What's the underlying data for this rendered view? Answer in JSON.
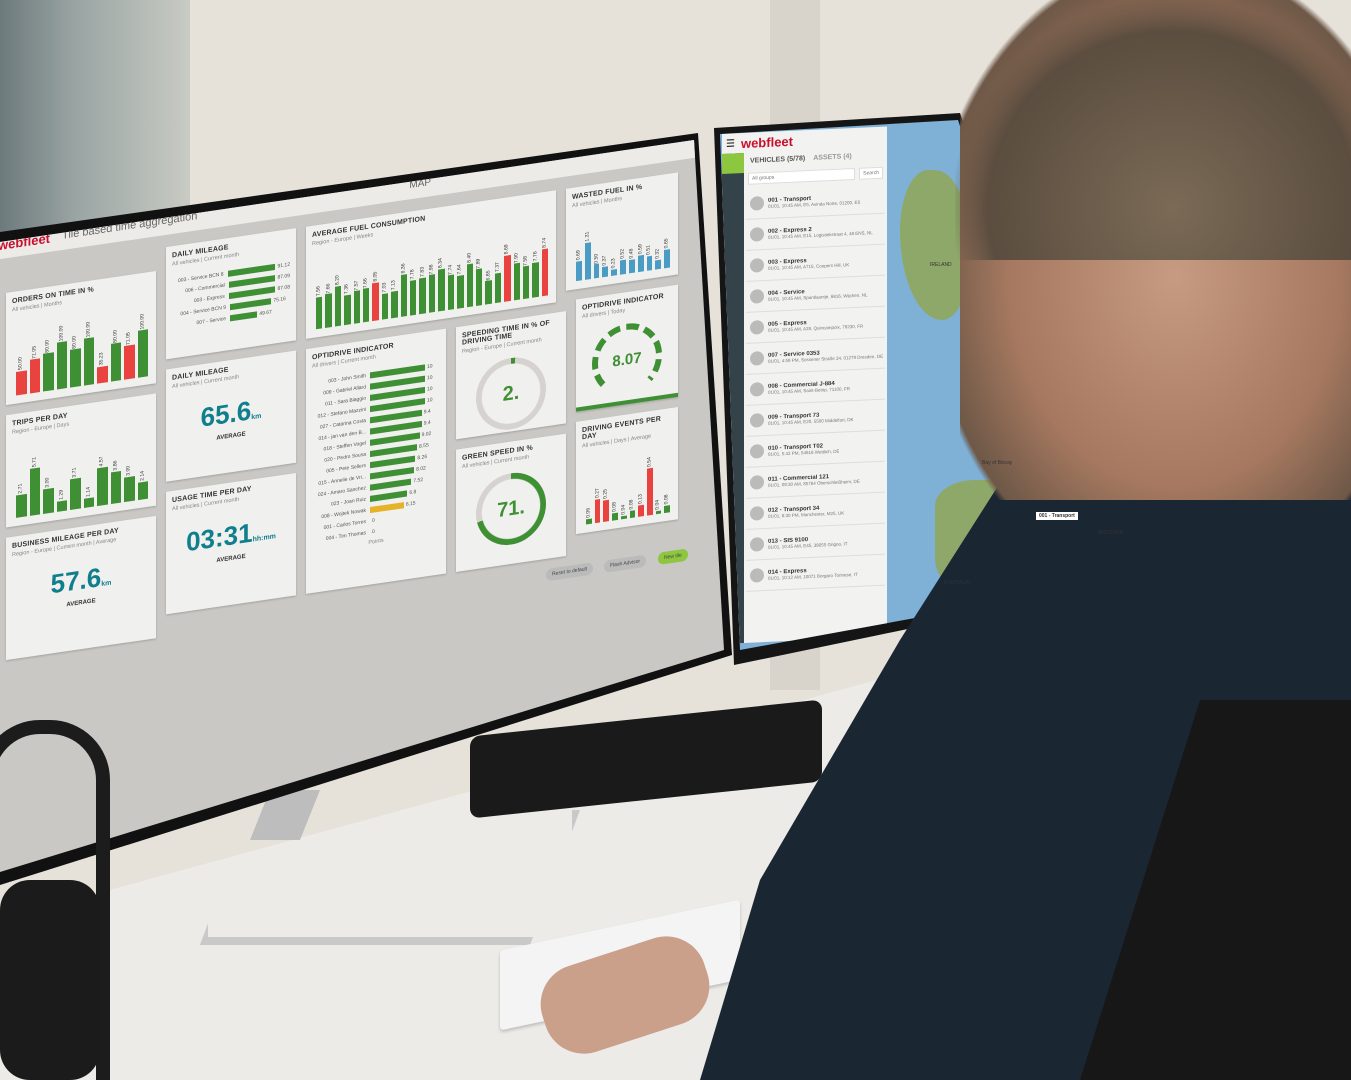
{
  "left_app": {
    "logo": "webfleet",
    "aggregation": "Tile based time aggregation",
    "window_title": "MAP",
    "orders": {
      "title": "ORDERS ON TIME IN %",
      "sub": "All vehicles | Months",
      "values": [
        50.0,
        71.05,
        80.0,
        100.0,
        80.0,
        100.0,
        35.23,
        80.0,
        71.05,
        100.0
      ],
      "red": [
        0,
        1,
        6,
        8
      ]
    },
    "daily_mileage_list": {
      "title": "DAILY MILEAGE",
      "sub": "All vehicles | Current month",
      "rows": [
        {
          "label": "003 - Service BCN 8",
          "value": 91.12
        },
        {
          "label": "006 - Commercial",
          "value": 87.09
        },
        {
          "label": "003 - Express",
          "value": 87.08
        },
        {
          "label": "004 - Service BCN 9",
          "value": 75.16
        },
        {
          "label": "007 - Service",
          "value": 49.67
        }
      ],
      "unit": "km"
    },
    "fuel": {
      "title": "AVERAGE FUEL CONSUMPTION",
      "sub": "Region - Europe | Weeks",
      "values": [
        7.56,
        7.66,
        8.2,
        7.36,
        7.57,
        7.66,
        8.05,
        7.03,
        7.13,
        8.36,
        7.78,
        7.83,
        7.98,
        8.34,
        7.74,
        7.64,
        8.4,
        7.89,
        6.85,
        7.37,
        8.69,
        7.9,
        7.58,
        7.76,
        8.74
      ],
      "red": [
        6,
        20,
        24
      ]
    },
    "wasted": {
      "title": "WASTED FUEL IN %",
      "sub": "All vehicles | Months",
      "values": [
        0.69,
        1.31,
        0.5,
        0.37,
        0.23,
        0.52,
        0.48,
        0.59,
        0.51,
        0.32,
        0.65
      ]
    },
    "trips": {
      "title": "TRIPS PER DAY",
      "sub": "Region - Europe | Days",
      "values": [
        2.71,
        5.71,
        3.0,
        1.29,
        3.71,
        1.14,
        4.57,
        3.86,
        3.0,
        2.14
      ]
    },
    "daily_mileage": {
      "title": "DAILY MILEAGE",
      "sub": "All vehicles | Current month",
      "value": "65.6",
      "unit": "km",
      "caption": "AVERAGE"
    },
    "optidrive_list": {
      "title": "OPTIDRIVE INDICATOR",
      "sub": "All drivers | Current month",
      "axis": "Points",
      "rows": [
        {
          "label": "003 - John Smith",
          "value": 10
        },
        {
          "label": "009 - Gabriel Allard",
          "value": 10
        },
        {
          "label": "011 - Sara Biaggio",
          "value": 10
        },
        {
          "label": "012 - Stefano Mazzini",
          "value": 10
        },
        {
          "label": "027 - Catarina Costa",
          "value": 9.4
        },
        {
          "label": "014 - jan van den B...",
          "value": 9.4
        },
        {
          "label": "018 - Steffen Vogel",
          "value": 9.02
        },
        {
          "label": "020 - Pedro Sousa",
          "value": 8.55
        },
        {
          "label": "005 - Pete Sellers",
          "value": 8.26
        },
        {
          "label": "015 - Annelie de Vri...",
          "value": 8.02
        },
        {
          "label": "024 - Amaro Sanchez",
          "value": 7.52
        },
        {
          "label": "023 - Joan Ruiz",
          "value": 6.8
        },
        {
          "label": "008 - Wojtek Nowak",
          "value": 6.15
        },
        {
          "label": "001 - Carlos Torres",
          "value": 0
        },
        {
          "label": "004 - Tim Thomas",
          "value": 0.0
        }
      ]
    },
    "speeding": {
      "title": "SPEEDING TIME IN % OF DRIVING TIME",
      "sub": "Region - Europe | Current month",
      "value": "2.",
      "percent": 2
    },
    "green_speed": {
      "title": "GREEN SPEED IN %",
      "sub": "All vehicles | Current month",
      "value": "71.",
      "percent": 71
    },
    "optidrive": {
      "title": "OPTIDRIVE INDICATOR",
      "sub": "All drivers | Today",
      "value": "8.07"
    },
    "events": {
      "title": "DRIVING EVENTS PER DAY",
      "sub": "All vehicles | Days | Average",
      "values": [
        0.06,
        0.27,
        0.25,
        0.08,
        0.04,
        0.08,
        0.13,
        0.54,
        0.04,
        0.08
      ],
      "red": [
        1,
        2,
        6,
        7
      ]
    },
    "business": {
      "title": "BUSINESS MILEAGE PER DAY",
      "sub": "Region - Europe | Current month | Average",
      "value": "57.6",
      "unit": "km",
      "caption": "AVERAGE"
    },
    "usage": {
      "title": "USAGE TIME PER DAY",
      "sub": "All vehicles | Current month",
      "value": "03:31",
      "unit": "hh:mm",
      "caption": "AVERAGE"
    },
    "buttons": {
      "reset": "Reset to default",
      "flash": "Flash Advisor",
      "new": "New tile"
    }
  },
  "right_app": {
    "logo": "webfleet",
    "tab_vehicles": "VEHICLES (5/78)",
    "tab_assets": "ASSETS (4)",
    "group": "All groups",
    "search": "Search",
    "vehicles": [
      {
        "name": "001 - Transport",
        "addr": "01/01, 10:45 AM, E5, Avinda Norte, 01200, ES"
      },
      {
        "name": "002 - Express 2",
        "addr": "01/01, 10:45 AM, E15, Logistiekstraat 4, 48 ENS, NL"
      },
      {
        "name": "003 - Express",
        "addr": "01/01, 10:45 AM, A715, Coopers Hill, UK"
      },
      {
        "name": "004 - Service",
        "addr": "01/01, 10:45 AM, Spantlaantje, 6816, Wijchen, NL"
      },
      {
        "name": "005 - Express",
        "addr": "01/01, 10:45 AM, A28, Quincampoix, 76230, FR"
      },
      {
        "name": "007 - Service 0353",
        "addr": "01/01, 4:59 PM, Sossener Straße 34, 01279 Dresden, DE"
      },
      {
        "name": "008 - Commercial J-884",
        "addr": "01/01, 10:45 AM, Saint-Betrip, 71100, FR"
      },
      {
        "name": "009 - Transport 73",
        "addr": "01/01, 10:45 AM, E20, 5500 Middelfart, DK"
      },
      {
        "name": "010 - Transport T02",
        "addr": "01/01, 5:42 PM, 54616 Wettlich, DE"
      },
      {
        "name": "011 - Commercial 121",
        "addr": "01/01, 09:30 AM, 85764 Oberschleißheim, DE"
      },
      {
        "name": "012 - Transport 34",
        "addr": "01/01, 6:30 PM, Manchester, M25, UK"
      },
      {
        "name": "013 - SIS 9100",
        "addr": "01/01, 10:45 AM, E45, 38055 Grigno, IT"
      },
      {
        "name": "014 - Express",
        "addr": "01/01, 10:12 AM, 10071 Borgaro Torinese, IT"
      }
    ],
    "map_labels": {
      "ireland": "IRELAND",
      "portugal": "PORTUGAL",
      "andorra": "ANDORRA",
      "bay": "Bay of Biscay",
      "pin": "001 - Transport"
    }
  },
  "colors": {
    "green": "#3f8f35",
    "red": "#e8433f",
    "teal": "#0f7f8e",
    "blue": "#4a9cc4",
    "yellow": "#e5b22a",
    "brand": "#c8102e"
  }
}
